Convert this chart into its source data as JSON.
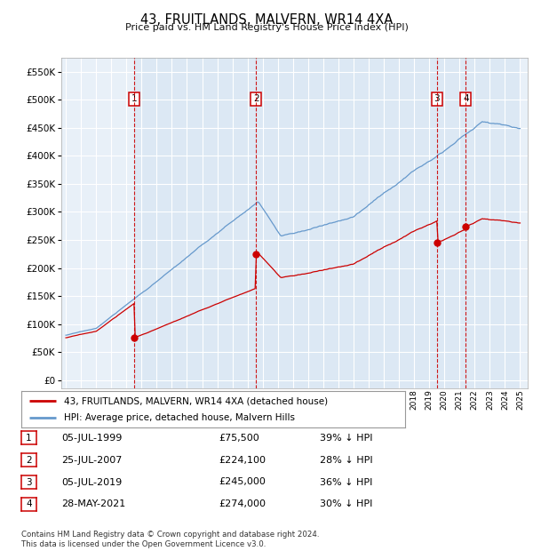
{
  "title": "43, FRUITLANDS, MALVERN, WR14 4XA",
  "subtitle": "Price paid vs. HM Land Registry's House Price Index (HPI)",
  "y_label_values": [
    0,
    50000,
    100000,
    150000,
    200000,
    250000,
    300000,
    350000,
    400000,
    450000,
    500000,
    550000
  ],
  "sale_color": "#cc0000",
  "hpi_line_color": "#6699cc",
  "plot_bg": "#e8f0f8",
  "shade_color": "#dce8f4",
  "legend_label_sale": "43, FRUITLANDS, MALVERN, WR14 4XA (detached house)",
  "legend_label_hpi": "HPI: Average price, detached house, Malvern Hills",
  "sale_dates": [
    1999.53,
    2007.56,
    2019.51,
    2021.41
  ],
  "sale_prices": [
    75500,
    224100,
    245000,
    274000
  ],
  "sale_labels": [
    "1",
    "2",
    "3",
    "4"
  ],
  "vline_color": "#cc0000",
  "table_rows": [
    [
      "1",
      "05-JUL-1999",
      "£75,500",
      "39% ↓ HPI"
    ],
    [
      "2",
      "25-JUL-2007",
      "£224,100",
      "28% ↓ HPI"
    ],
    [
      "3",
      "05-JUL-2019",
      "£245,000",
      "36% ↓ HPI"
    ],
    [
      "4",
      "28-MAY-2021",
      "£274,000",
      "30% ↓ HPI"
    ]
  ],
  "footer": "Contains HM Land Registry data © Crown copyright and database right 2024.\nThis data is licensed under the Open Government Licence v3.0."
}
